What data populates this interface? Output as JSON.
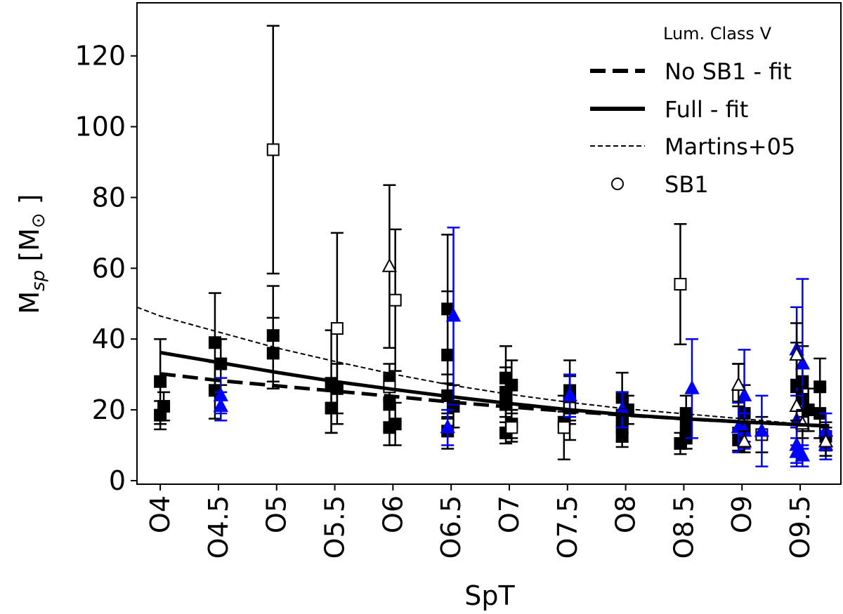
{
  "chart_data": {
    "type": "scatter",
    "title": "",
    "xlabel": "SpT",
    "ylabel": "M_sp [M_☉]",
    "ylabel_parts": {
      "main": "M",
      "sub": "sp",
      "unit": " [M",
      "unit_sub": "⊙",
      "close": " ]"
    },
    "xlim": [
      3.8,
      9.85
    ],
    "ylim": [
      -1,
      135
    ],
    "x_ticks": [
      4,
      4.5,
      5,
      5.5,
      6,
      6.5,
      7,
      7.5,
      8,
      8.5,
      9,
      9.5
    ],
    "x_tick_labels": [
      "O4",
      "O4.5",
      "O5",
      "O5.5",
      "O6",
      "O6.5",
      "O7",
      "O7.5",
      "O8",
      "O8.5",
      "O9",
      "O9.5"
    ],
    "y_ticks": [
      0,
      20,
      40,
      60,
      80,
      100,
      120
    ],
    "y_tick_labels": [
      "0",
      "20",
      "40",
      "60",
      "80",
      "100",
      "120"
    ],
    "grid": false,
    "legend": {
      "title": "Lum. Class V",
      "position": "top-right",
      "entries": [
        {
          "label": "No SB1 - fit",
          "style": "dashed-thick"
        },
        {
          "label": "Full - fit",
          "style": "solid-thick"
        },
        {
          "label": "Martins+05",
          "style": "dashed-thin"
        },
        {
          "label": "SB1",
          "style": "open-circle"
        }
      ]
    },
    "curves": [
      {
        "name": "No SB1 - fit",
        "style": "dashed-thick",
        "x": [
          4.0,
          4.5,
          5.0,
          5.5,
          6.0,
          6.5,
          7.0,
          7.5,
          8.0,
          8.5,
          9.0,
          9.5,
          9.75
        ],
        "y": [
          30.2,
          28.3,
          26.8,
          25.3,
          23.8,
          22.2,
          20.8,
          19.6,
          18.5,
          17.5,
          16.6,
          15.8,
          15.4
        ]
      },
      {
        "name": "Full - fit",
        "style": "solid-thick",
        "x": [
          4.0,
          4.5,
          5.0,
          5.5,
          6.0,
          6.5,
          7.0,
          7.5,
          8.0,
          8.5,
          9.0,
          9.5,
          9.75
        ],
        "y": [
          36.2,
          33.4,
          30.6,
          28.0,
          25.8,
          23.7,
          21.8,
          20.1,
          18.6,
          17.5,
          16.6,
          15.8,
          15.5
        ]
      },
      {
        "name": "Martins+05",
        "style": "dashed-thin",
        "x": [
          3.8,
          4.0,
          4.5,
          5.0,
          5.5,
          6.0,
          6.5,
          7.0,
          7.5,
          8.0,
          8.5,
          9.0,
          9.5,
          9.75
        ],
        "y": [
          49.0,
          46.5,
          42.0,
          37.5,
          33.7,
          30.1,
          27.0,
          24.4,
          22.2,
          20.3,
          18.9,
          17.5,
          16.0,
          15.2
        ]
      }
    ],
    "series": [
      {
        "name": "Black filled squares",
        "marker": "square-filled",
        "color": "#000000",
        "points": [
          [
            4.0,
            28,
            12,
            12
          ],
          [
            4.0,
            18.5,
            4,
            4
          ],
          [
            4.03,
            21,
            4,
            4
          ],
          [
            4.47,
            39,
            13,
            14
          ],
          [
            4.47,
            25.5,
            8,
            8
          ],
          [
            4.52,
            33,
            6,
            7
          ],
          [
            4.97,
            41,
            13,
            14
          ],
          [
            4.97,
            36,
            10,
            10
          ],
          [
            5.47,
            27.5,
            14,
            15
          ],
          [
            5.47,
            20.5,
            7,
            7
          ],
          [
            5.52,
            26,
            7,
            7
          ],
          [
            5.97,
            22,
            8,
            8
          ],
          [
            5.97,
            15,
            5,
            5
          ],
          [
            6.02,
            16,
            6,
            6
          ],
          [
            5.97,
            28,
            5,
            5
          ],
          [
            6.47,
            48.5,
            21,
            21
          ],
          [
            6.47,
            35.5,
            18,
            18
          ],
          [
            6.47,
            24,
            6,
            6
          ],
          [
            6.47,
            14,
            5,
            5
          ],
          [
            6.52,
            21,
            6,
            6
          ],
          [
            6.97,
            29,
            9,
            9
          ],
          [
            6.97,
            25,
            7,
            7
          ],
          [
            6.97,
            21.5,
            5,
            5
          ],
          [
            7.02,
            16,
            4,
            4
          ],
          [
            7.02,
            27,
            7,
            7
          ],
          [
            6.97,
            13.5,
            3,
            3
          ],
          [
            7.52,
            25,
            9,
            9
          ],
          [
            7.52,
            22,
            5,
            5
          ],
          [
            7.47,
            16.5,
            3,
            3
          ],
          [
            7.97,
            23.5,
            7,
            7
          ],
          [
            7.97,
            18.5,
            5,
            5
          ],
          [
            7.97,
            15,
            4,
            4
          ],
          [
            8.02,
            20,
            4,
            4
          ],
          [
            7.97,
            12.5,
            3,
            3
          ],
          [
            8.47,
            10.5,
            3,
            3
          ],
          [
            8.52,
            19,
            5,
            5
          ],
          [
            8.52,
            15.5,
            4,
            4
          ],
          [
            8.52,
            12,
            3,
            3
          ],
          [
            9.02,
            19,
            8,
            8
          ],
          [
            9.02,
            14.5,
            5,
            5
          ],
          [
            8.97,
            11.5,
            3,
            3
          ],
          [
            9.47,
            27,
            12,
            12
          ],
          [
            9.52,
            23,
            9,
            9
          ],
          [
            9.52,
            28,
            10,
            10
          ],
          [
            9.57,
            20,
            6,
            6
          ],
          [
            9.67,
            26.5,
            8,
            8
          ],
          [
            9.67,
            19,
            7,
            7
          ],
          [
            9.72,
            12.5,
            4,
            4
          ]
        ]
      },
      {
        "name": "Black open squares (SB1)",
        "marker": "square-open",
        "color": "#000000",
        "points": [
          [
            4.97,
            93.5,
            35,
            35
          ],
          [
            5.52,
            43,
            27,
            27
          ],
          [
            6.02,
            51,
            20,
            20
          ],
          [
            5.97,
            26.5,
            4,
            4
          ],
          [
            7.02,
            15,
            4,
            4
          ],
          [
            7.47,
            15,
            9,
            9
          ],
          [
            7.52,
            20.5,
            9,
            9
          ],
          [
            8.47,
            55.5,
            17,
            17
          ],
          [
            8.97,
            24,
            9,
            9
          ],
          [
            9.17,
            13,
            5,
            5
          ]
        ]
      },
      {
        "name": "Blue filled triangles",
        "marker": "triangle-filled",
        "color": "#0000ff",
        "points": [
          [
            4.52,
            24,
            5,
            5
          ],
          [
            4.52,
            21,
            4,
            4
          ],
          [
            6.52,
            46.5,
            25,
            25
          ],
          [
            6.47,
            15,
            5,
            5
          ],
          [
            7.52,
            24,
            6,
            6
          ],
          [
            7.97,
            20,
            5,
            5
          ],
          [
            8.57,
            26,
            14,
            14
          ],
          [
            8.97,
            15,
            7,
            7
          ],
          [
            9.02,
            14,
            5,
            5
          ],
          [
            9.02,
            24,
            13,
            13
          ],
          [
            9.17,
            14,
            10,
            10
          ],
          [
            9.47,
            17,
            7,
            7
          ],
          [
            9.47,
            10,
            5,
            5
          ],
          [
            9.47,
            8,
            4,
            4
          ],
          [
            9.52,
            7,
            3,
            3
          ],
          [
            9.52,
            33,
            24,
            24
          ],
          [
            9.47,
            37,
            12,
            12
          ],
          [
            9.72,
            14,
            5,
            5
          ],
          [
            9.72,
            10,
            4,
            4
          ]
        ]
      },
      {
        "name": "Black open triangles (SB1)",
        "marker": "triangle-open",
        "color": "#000000",
        "points": [
          [
            5.97,
            60.5,
            23,
            23
          ],
          [
            8.97,
            27,
            6,
            6
          ],
          [
            9.02,
            11,
            3,
            3
          ],
          [
            9.47,
            35.5,
            9,
            9
          ],
          [
            9.47,
            21,
            4,
            4
          ],
          [
            9.52,
            16,
            4,
            4
          ],
          [
            9.72,
            11,
            4,
            4
          ]
        ]
      }
    ]
  }
}
